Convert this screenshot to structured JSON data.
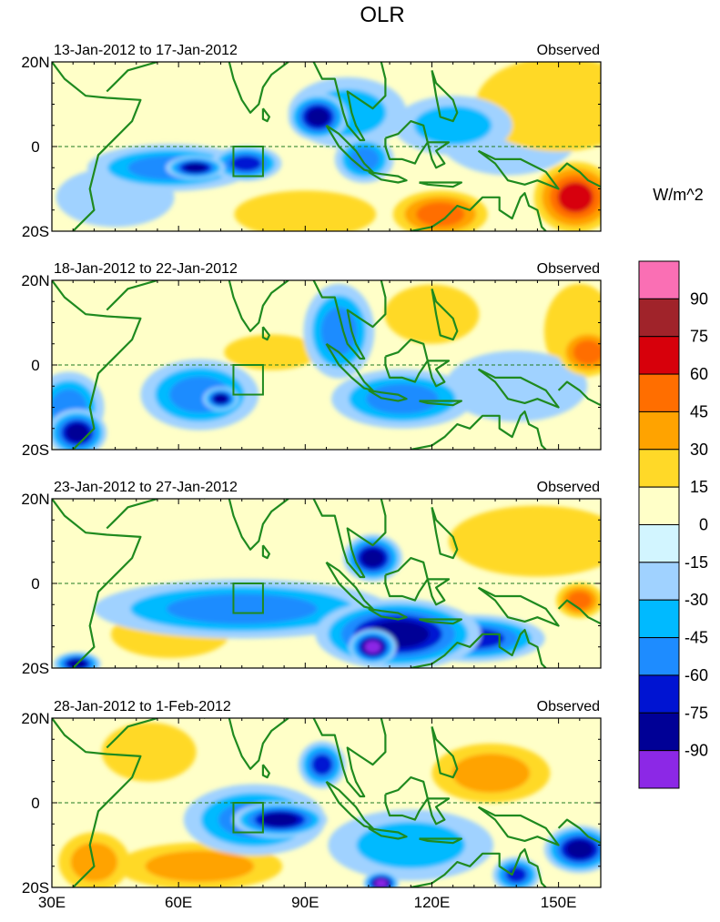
{
  "chart_data": {
    "type": "heatmap",
    "title": "OLR",
    "units_label": "W/m^2",
    "x_ticks": [
      30,
      60,
      90,
      120,
      150
    ],
    "x_tick_labels": [
      "30E",
      "60E",
      "90E",
      "120E",
      "150E"
    ],
    "x_range": [
      30,
      160
    ],
    "y_range": [
      -20,
      20
    ],
    "y_tick_labels": [
      "20N",
      "0",
      "20S"
    ],
    "equator_line": true,
    "box_region": {
      "lon": [
        73,
        80
      ],
      "lat": [
        -7,
        0
      ]
    },
    "colorbar": {
      "labels": [
        "90",
        "75",
        "60",
        "45",
        "30",
        "15",
        "0",
        "-15",
        "-30",
        "-45",
        "-60",
        "-75",
        "-90"
      ],
      "colors": [
        "#fa6fb4",
        "#a0232a",
        "#d7000b",
        "#ff6e00",
        "#ffa300",
        "#ffd928",
        "#ffffc8",
        "#d2f5ff",
        "#a0d2ff",
        "#00baff",
        "#1e8cff",
        "#0014d2",
        "#000096",
        "#8c28e6"
      ]
    },
    "panels": [
      {
        "period": "13-Jan-2012 to 17-Jan-2012",
        "label": "Observed",
        "anomalies": [
          {
            "lon": 58,
            "lat": -5,
            "value": -45,
            "rx": 14,
            "ry": 4
          },
          {
            "lon": 64,
            "lat": -5,
            "value": -75,
            "rx": 5,
            "ry": 2
          },
          {
            "lon": 76,
            "lat": -4,
            "value": -60,
            "rx": 6,
            "ry": 3
          },
          {
            "lon": 93,
            "lat": 7,
            "value": -75,
            "rx": 5,
            "ry": 4
          },
          {
            "lon": 100,
            "lat": 8,
            "value": -30,
            "rx": 10,
            "ry": 6
          },
          {
            "lon": 104,
            "lat": -3,
            "value": -45,
            "rx": 5,
            "ry": 4
          },
          {
            "lon": 125,
            "lat": 5,
            "value": -30,
            "rx": 10,
            "ry": 5
          },
          {
            "lon": 138,
            "lat": 3,
            "value": -15,
            "rx": 12,
            "ry": 7
          },
          {
            "lon": 122,
            "lat": -16,
            "value": 45,
            "rx": 8,
            "ry": 4
          },
          {
            "lon": 154,
            "lat": -12,
            "value": 60,
            "rx": 7,
            "ry": 6
          },
          {
            "lon": 150,
            "lat": 10,
            "value": 15,
            "rx": 14,
            "ry": 8
          },
          {
            "lon": 90,
            "lat": -16,
            "value": 15,
            "rx": 12,
            "ry": 4
          },
          {
            "lon": 45,
            "lat": -12,
            "value": -15,
            "rx": 10,
            "ry": 5
          }
        ]
      },
      {
        "period": "18-Jan-2012 to 22-Jan-2012",
        "label": "Observed",
        "anomalies": [
          {
            "lon": 65,
            "lat": -7,
            "value": -45,
            "rx": 10,
            "ry": 6
          },
          {
            "lon": 70,
            "lat": -8,
            "value": -75,
            "rx": 3,
            "ry": 2
          },
          {
            "lon": 98,
            "lat": 8,
            "value": -45,
            "rx": 6,
            "ry": 8
          },
          {
            "lon": 113,
            "lat": -8,
            "value": -45,
            "rx": 12,
            "ry": 5
          },
          {
            "lon": 36,
            "lat": -16,
            "value": -75,
            "rx": 5,
            "ry": 4
          },
          {
            "lon": 34,
            "lat": -10,
            "value": -45,
            "rx": 6,
            "ry": 6
          },
          {
            "lon": 157,
            "lat": 3,
            "value": 45,
            "rx": 5,
            "ry": 4
          },
          {
            "lon": 155,
            "lat": 8,
            "value": 15,
            "rx": 6,
            "ry": 8
          },
          {
            "lon": 120,
            "lat": 12,
            "value": 15,
            "rx": 8,
            "ry": 5
          },
          {
            "lon": 82,
            "lat": 3,
            "value": 15,
            "rx": 8,
            "ry": 3
          },
          {
            "lon": 140,
            "lat": -5,
            "value": -15,
            "rx": 12,
            "ry": 6
          }
        ]
      },
      {
        "period": "23-Jan-2012 to 27-Jan-2012",
        "label": "Observed",
        "anomalies": [
          {
            "lon": 75,
            "lat": -6,
            "value": -45,
            "rx": 25,
            "ry": 5
          },
          {
            "lon": 112,
            "lat": -12,
            "value": -75,
            "rx": 14,
            "ry": 6
          },
          {
            "lon": 106,
            "lat": -15,
            "value": -90,
            "rx": 4,
            "ry": 3
          },
          {
            "lon": 130,
            "lat": -13,
            "value": -60,
            "rx": 12,
            "ry": 4
          },
          {
            "lon": 106,
            "lat": 6,
            "value": -75,
            "rx": 5,
            "ry": 4
          },
          {
            "lon": 58,
            "lat": -12,
            "value": 15,
            "rx": 10,
            "ry": 4
          },
          {
            "lon": 145,
            "lat": 10,
            "value": 15,
            "rx": 15,
            "ry": 6
          },
          {
            "lon": 155,
            "lat": -4,
            "value": 45,
            "rx": 4,
            "ry": 3
          },
          {
            "lon": 36,
            "lat": -19,
            "value": -75,
            "rx": 4,
            "ry": 2
          }
        ]
      },
      {
        "period": "28-Jan-2012 to 1-Feb-2012",
        "label": "Observed",
        "anomalies": [
          {
            "lon": 84,
            "lat": -4,
            "value": -75,
            "rx": 8,
            "ry": 3
          },
          {
            "lon": 78,
            "lat": -4,
            "value": -45,
            "rx": 12,
            "ry": 6
          },
          {
            "lon": 94,
            "lat": 9,
            "value": -60,
            "rx": 4,
            "ry": 4
          },
          {
            "lon": 108,
            "lat": -19,
            "value": -90,
            "rx": 3,
            "ry": 2
          },
          {
            "lon": 155,
            "lat": -11,
            "value": -75,
            "rx": 6,
            "ry": 4
          },
          {
            "lon": 140,
            "lat": -17,
            "value": -60,
            "rx": 4,
            "ry": 3
          },
          {
            "lon": 134,
            "lat": 7,
            "value": 30,
            "rx": 10,
            "ry": 5
          },
          {
            "lon": 65,
            "lat": -15,
            "value": 30,
            "rx": 14,
            "ry": 4
          },
          {
            "lon": 40,
            "lat": -14,
            "value": 30,
            "rx": 6,
            "ry": 5
          },
          {
            "lon": 115,
            "lat": -10,
            "value": -30,
            "rx": 14,
            "ry": 6
          },
          {
            "lon": 53,
            "lat": 12,
            "value": 15,
            "rx": 8,
            "ry": 5
          }
        ]
      }
    ]
  }
}
